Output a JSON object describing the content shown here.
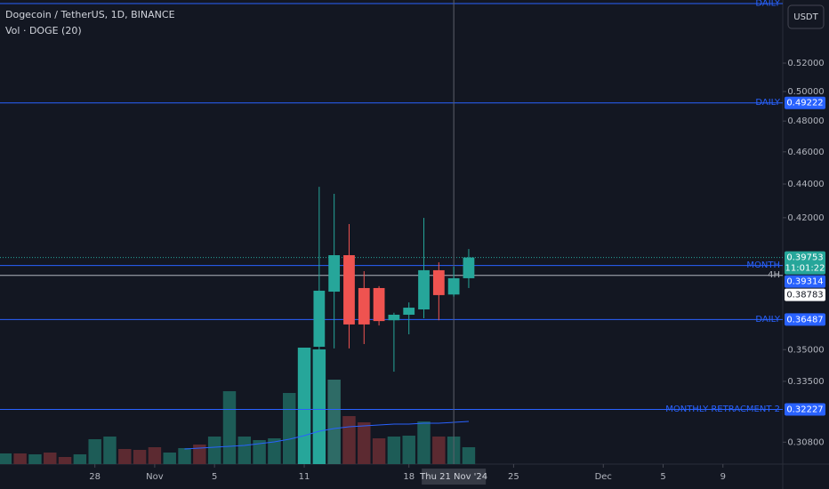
{
  "chart_data": {
    "type": "candlestick",
    "title": "Dogecoin / TetherUS, 1D, BINANCE",
    "subtitle": "Vol · DOGE (20)",
    "currency": "USDT",
    "log_scale": true,
    "grid": false,
    "up_color": "#26a69a",
    "down_color": "#ef5350",
    "ylim": [
      0.2988,
      0.5674
    ],
    "yticks": [
      {
        "value": 0.52,
        "label": "0.52000"
      },
      {
        "value": 0.5,
        "label": "0.50000"
      },
      {
        "value": 0.48,
        "label": "0.48000"
      },
      {
        "value": 0.46,
        "label": "0.46000"
      },
      {
        "value": 0.44,
        "label": "0.44000"
      },
      {
        "value": 0.42,
        "label": "0.42000"
      },
      {
        "value": 0.35,
        "label": "0.35000"
      },
      {
        "value": 0.335,
        "label": "0.33500"
      },
      {
        "value": 0.308,
        "label": "0.30800"
      }
    ],
    "xlim": [
      "2024-10-21",
      "2024-12-13"
    ],
    "xticks": [
      {
        "value": "2024-10-28",
        "label": "28"
      },
      {
        "value": "2024-11-01",
        "label": "Nov"
      },
      {
        "value": "2024-11-05",
        "label": "5"
      },
      {
        "value": "2024-11-11",
        "label": "11"
      },
      {
        "value": "2024-11-18",
        "label": "18"
      },
      {
        "value": "2024-11-25",
        "label": "25"
      },
      {
        "value": "2024-12-01",
        "label": "Dec"
      },
      {
        "value": "2024-12-05",
        "label": "5"
      },
      {
        "value": "2024-12-09",
        "label": "9"
      }
    ],
    "x": [
      "2024-11-12",
      "2024-11-13",
      "2024-11-14",
      "2024-11-15",
      "2024-11-16",
      "2024-11-17",
      "2024-11-18",
      "2024-11-19",
      "2024-11-20",
      "2024-11-21",
      "2024-11-22"
    ],
    "open": [
      0.3514,
      0.3792,
      0.3988,
      0.3811,
      0.3811,
      0.3645,
      0.3673,
      0.37,
      0.3906,
      0.3777,
      0.3863
    ],
    "high": [
      0.4383,
      0.4341,
      0.4163,
      0.3901,
      0.3821,
      0.3683,
      0.3736,
      0.4199,
      0.3949,
      0.3925,
      0.4022
    ],
    "low": [
      0.3264,
      0.3506,
      0.3506,
      0.3527,
      0.3619,
      0.3395,
      0.3575,
      0.3655,
      0.3645,
      0.3766,
      0.3811
    ],
    "close": [
      0.3797,
      0.3988,
      0.3624,
      0.3624,
      0.3641,
      0.3673,
      0.3709,
      0.3906,
      0.3774,
      0.3863,
      0.39753
    ],
    "volume": {
      "x": [
        "2024-10-22",
        "2024-10-23",
        "2024-10-24",
        "2024-10-25",
        "2024-10-26",
        "2024-10-27",
        "2024-10-28",
        "2024-10-29",
        "2024-10-30",
        "2024-10-31",
        "2024-11-01",
        "2024-11-02",
        "2024-11-03",
        "2024-11-04",
        "2024-11-05",
        "2024-11-06",
        "2024-11-07",
        "2024-11-08",
        "2024-11-09",
        "2024-11-10",
        "2024-11-11",
        "2024-11-12",
        "2024-11-13",
        "2024-11-14",
        "2024-11-15",
        "2024-11-16",
        "2024-11-17",
        "2024-11-18",
        "2024-11-19",
        "2024-11-20",
        "2024-11-21",
        "2024-11-22"
      ],
      "vlim": [
        0,
        150
      ],
      "values": [
        12,
        12,
        11,
        13,
        8,
        11,
        28,
        31,
        17,
        16,
        19,
        13,
        18,
        22,
        31,
        82,
        31,
        27,
        29,
        80,
        131,
        129,
        95,
        54,
        47,
        29,
        31,
        32,
        48,
        31,
        31,
        19
      ],
      "colors": [
        "#1d5c57",
        "#5c2a31",
        "#1d5c57",
        "#5c2a31",
        "#5c2a31",
        "#1d5c57",
        "#1d5c57",
        "#1d5c57",
        "#5c2a31",
        "#5c2a31",
        "#5c2a31",
        "#1d5c57",
        "#1d5c57",
        "#5c2a31",
        "#1d5c57",
        "#1d5c57",
        "#1d5c57",
        "#1d5c57",
        "#1d5c57",
        "#1d5c57",
        "#26a69a",
        "#26a69a",
        "#2e6b66",
        "#5c2a31",
        "#5c2a31",
        "#5c2a31",
        "#1d5c57",
        "#1d5c57",
        "#1d5c57",
        "#5c2a31",
        "#1d5c57",
        "#1d5c57"
      ],
      "ma_color": "#2962ff",
      "ma": [
        null,
        null,
        null,
        null,
        null,
        null,
        null,
        null,
        null,
        null,
        null,
        null,
        17,
        18,
        19,
        20,
        21,
        23,
        25,
        28,
        32,
        37,
        40,
        42,
        43,
        44,
        45,
        45,
        46,
        46,
        47,
        48
      ]
    },
    "levels": [
      {
        "label": "DAILY",
        "value": 0.5646,
        "color": "#2962ff",
        "price_shown": false
      },
      {
        "label": "DAILY",
        "value": 0.49222,
        "color": "#2962ff",
        "price_shown": true
      },
      {
        "label": "MONTH",
        "value": 0.39314,
        "color": "#2962ff",
        "price_shown": true
      },
      {
        "label": "4H",
        "value": 0.38783,
        "color": "#b2b5be",
        "price_shown": true
      },
      {
        "label": "DAILY",
        "value": 0.36487,
        "color": "#2962ff",
        "price_shown": true
      },
      {
        "label": "MONTHLY RETRACMENT 2",
        "value": 0.32227,
        "color": "#2962ff",
        "price_shown": true
      }
    ],
    "last_price": {
      "value": 0.39753,
      "countdown": "11:01:22"
    },
    "crosshair": {
      "x": "2024-11-21",
      "label": "Thu 21 Nov '24"
    }
  }
}
